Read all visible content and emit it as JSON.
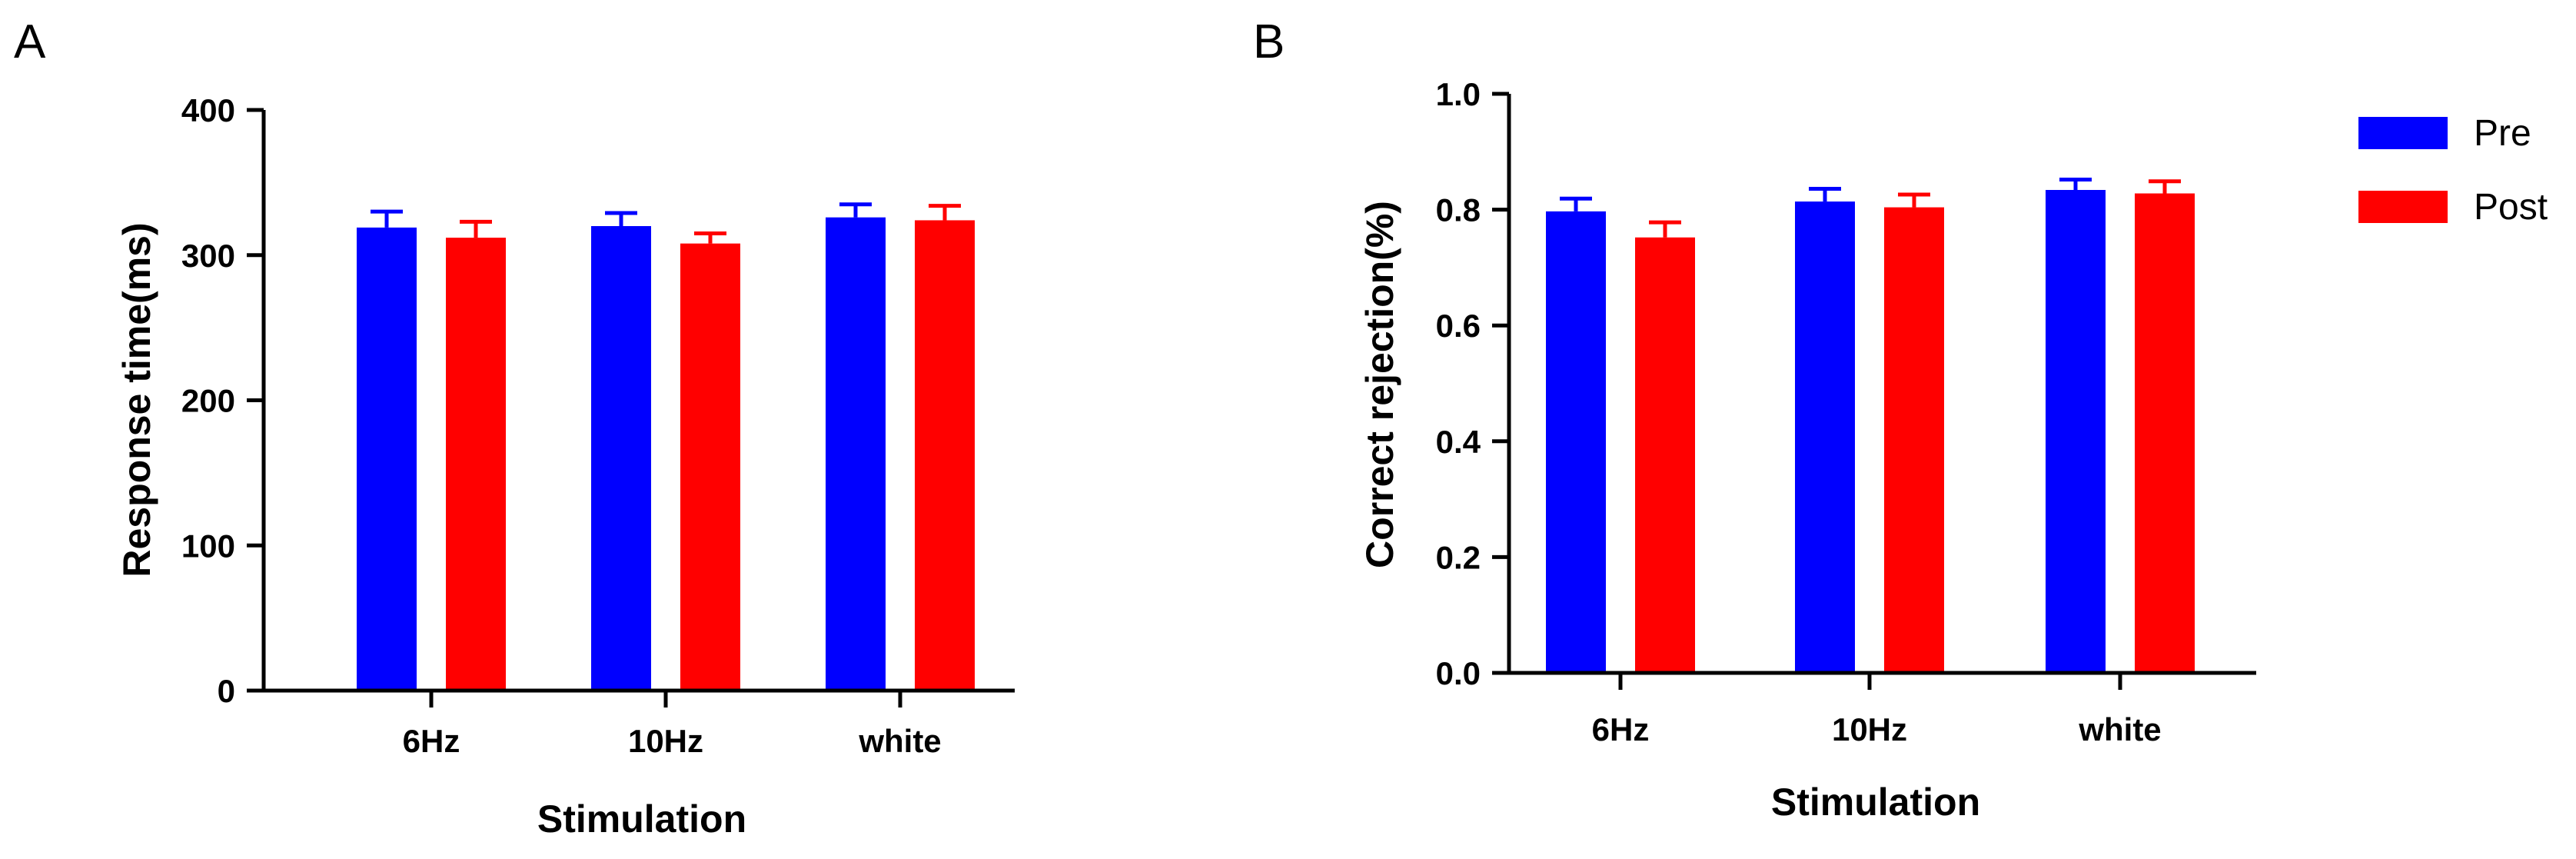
{
  "colors": {
    "pre": "#0000ff",
    "post": "#ff0000"
  },
  "legend": [
    {
      "name": "Pre",
      "color": "#0000ff"
    },
    {
      "name": "Post",
      "color": "#ff0000"
    }
  ],
  "legend_position": "top-right",
  "chart_data": [
    {
      "panel": "A",
      "type": "bar",
      "title": "",
      "xlabel": "Stimulation",
      "ylabel": "Response time(ms)",
      "categories": [
        "6Hz",
        "10Hz",
        "white"
      ],
      "ylim": [
        0,
        400
      ],
      "yticks": [
        "0",
        "100",
        "200",
        "300",
        "400"
      ],
      "series": [
        {
          "name": "Pre",
          "values": [
            319,
            320,
            326
          ],
          "errors": [
            11,
            9,
            9
          ]
        },
        {
          "name": "Post",
          "values": [
            312,
            308,
            324
          ],
          "errors": [
            11,
            7,
            10
          ]
        }
      ]
    },
    {
      "panel": "B",
      "type": "bar",
      "title": "",
      "xlabel": "Stimulation",
      "ylabel": "Correct rejection(%)",
      "categories": [
        "6Hz",
        "10Hz",
        "white"
      ],
      "ylim": [
        0,
        1.0
      ],
      "yticks": [
        "0.0",
        "0.2",
        "0.4",
        "0.6",
        "0.8",
        "1.0"
      ],
      "series": [
        {
          "name": "Pre",
          "values": [
            0.797,
            0.814,
            0.834
          ],
          "errors": [
            0.022,
            0.022,
            0.018
          ]
        },
        {
          "name": "Post",
          "values": [
            0.752,
            0.804,
            0.828
          ],
          "errors": [
            0.026,
            0.022,
            0.021
          ]
        }
      ]
    }
  ]
}
